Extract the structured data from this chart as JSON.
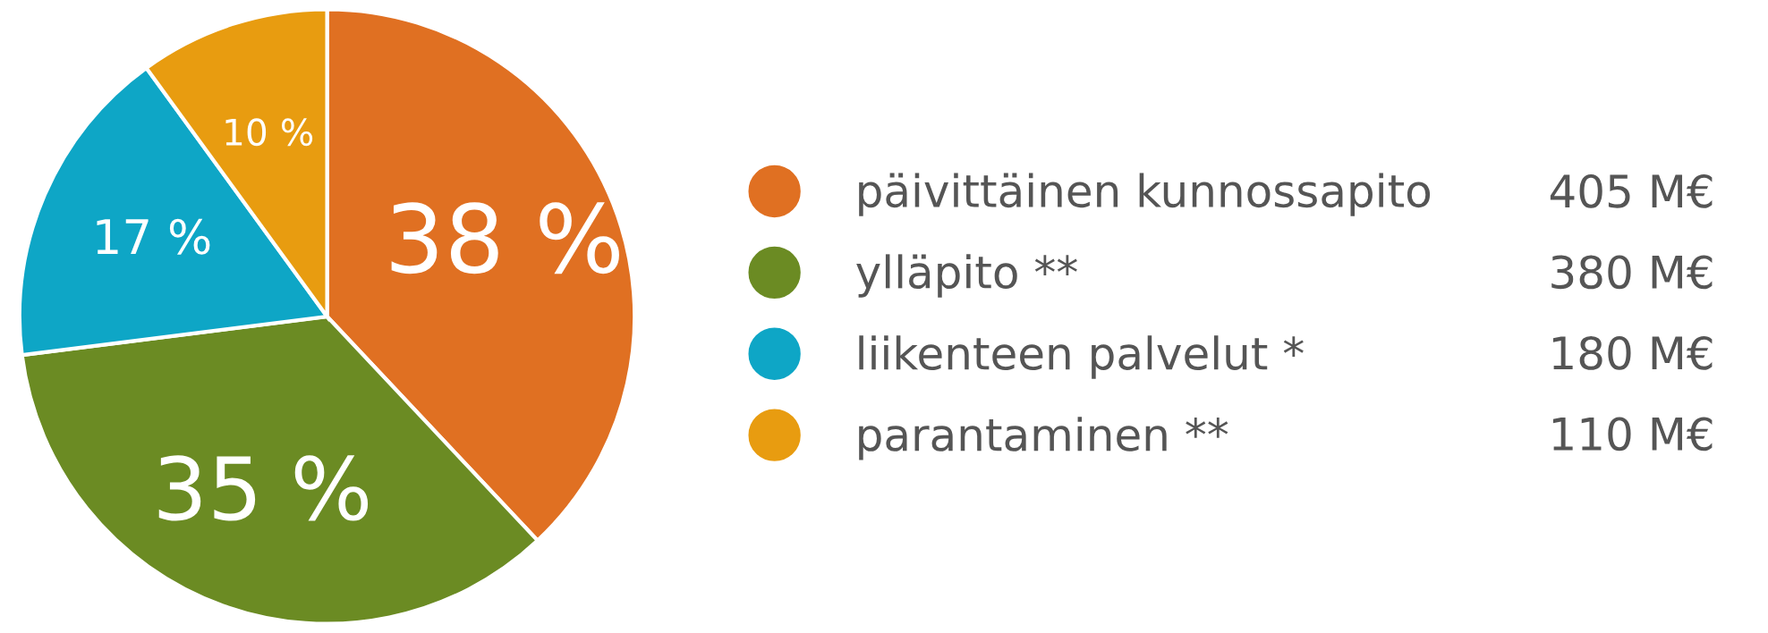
{
  "chart_data": {
    "type": "pie",
    "categories": [
      "päivittäinen kunnossapito",
      "ylläpito **",
      "liikenteen palvelut *",
      "parantaminen **"
    ],
    "values": [
      38,
      35,
      17,
      10
    ],
    "value_labels": [
      "38 %",
      "35 %",
      "17 %",
      "10 %"
    ],
    "colors": [
      "#e07022",
      "#6b8b23",
      "#0ea6c6",
      "#e89c10"
    ],
    "annotations": [
      "405 M€",
      "380 M€",
      "180 M€",
      "110 M€"
    ],
    "legend": "right"
  }
}
